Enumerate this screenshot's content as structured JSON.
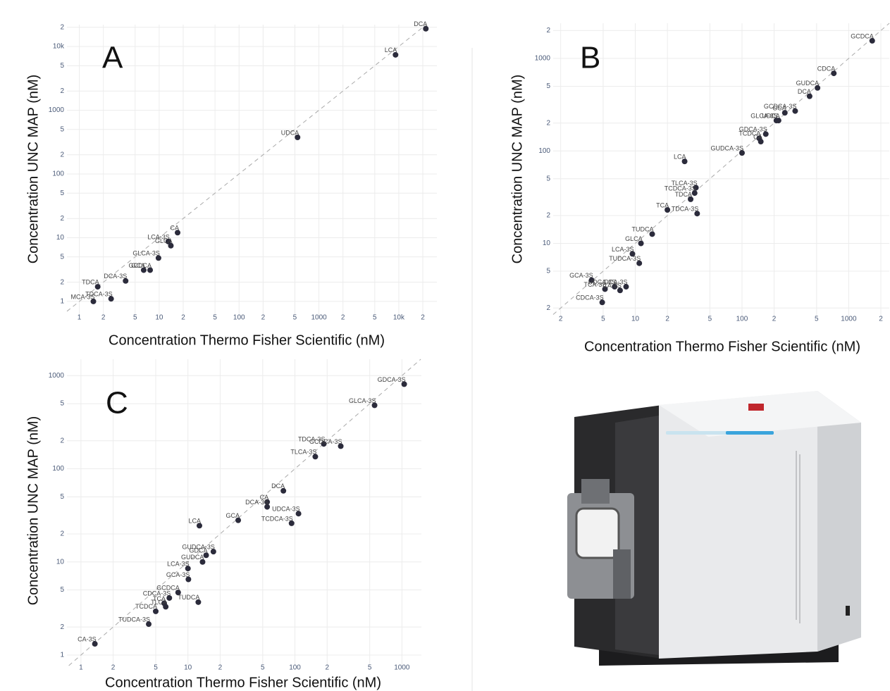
{
  "chart_data": [
    {
      "type": "scatter",
      "panel": "A",
      "xscale": "log",
      "yscale": "log",
      "grid": true,
      "color": "#2b2b3b",
      "x_label": "Concentration Thermo Fisher Scientific (nM)",
      "y_label": "Concentration UNC MAP (nM)",
      "xlim": [
        0.7,
        30000
      ],
      "ylim": [
        0.6,
        22000
      ],
      "xticks": [
        1,
        2,
        5,
        10,
        {
          "value": 20,
          "label": "2"
        },
        {
          "value": 50,
          "label": "5"
        },
        100,
        {
          "value": 200,
          "label": "2"
        },
        {
          "value": 500,
          "label": "5"
        },
        1000,
        {
          "value": 2000,
          "label": "2"
        },
        {
          "value": 5000,
          "label": "5"
        },
        {
          "value": 10000,
          "label": "10k"
        },
        {
          "value": 20000,
          "label": "2"
        }
      ],
      "yticks": [
        1,
        2,
        5,
        10,
        {
          "value": 20,
          "label": "2"
        },
        {
          "value": 50,
          "label": "5"
        },
        100,
        {
          "value": 200,
          "label": "2"
        },
        {
          "value": 500,
          "label": "5"
        },
        1000,
        {
          "value": 2000,
          "label": "2"
        },
        {
          "value": 5000,
          "label": "5"
        },
        {
          "value": 10000,
          "label": "10k"
        },
        {
          "value": 20000,
          "label": "2"
        }
      ],
      "labels": [
        "DCA",
        "LCA",
        "UDCA",
        "CA",
        "LCA-3S",
        "GLCA",
        "GLCA-3S",
        "GCDCA",
        "GCA",
        "DCA-3S",
        "TDCA",
        "TDCA-3S",
        "MCA-3S"
      ],
      "x": [
        21800,
        9100,
        540,
        17,
        13,
        14,
        9.8,
        7.7,
        6.4,
        3.8,
        1.7,
        2.5,
        1.5
      ],
      "values": [
        19000,
        7400,
        375,
        12,
        8.7,
        7.5,
        4.8,
        3.1,
        3.1,
        2.1,
        1.7,
        1.1,
        1.0
      ]
    },
    {
      "type": "scatter",
      "panel": "B",
      "xscale": "log",
      "yscale": "log",
      "grid": true,
      "color": "#2b2b3b",
      "x_label": "Concentration Thermo Fisher Scientific (nM)",
      "y_label": "Concentration UNC MAP (nM)",
      "xlim": [
        1.7,
        2400
      ],
      "ylim": [
        1.6,
        2400
      ],
      "xticks": [
        2,
        5,
        10,
        {
          "value": 20,
          "label": "2"
        },
        {
          "value": 50,
          "label": "5"
        },
        100,
        {
          "value": 200,
          "label": "2"
        },
        {
          "value": 500,
          "label": "5"
        },
        1000,
        {
          "value": 2000,
          "label": "2"
        }
      ],
      "yticks": [
        2,
        5,
        10,
        {
          "value": 20,
          "label": "2"
        },
        {
          "value": 50,
          "label": "5"
        },
        100,
        {
          "value": 200,
          "label": "2"
        },
        {
          "value": 500,
          "label": "5"
        },
        1000,
        {
          "value": 2000,
          "label": "2"
        }
      ],
      "labels": [
        "GCDCA",
        "CDCA",
        "GUDCA",
        "DCA",
        "GCDCA-3S",
        "GCA",
        "GLCA-3S",
        "UDCA",
        "GDCA-3S",
        "TCDCA",
        "CA",
        "GUDCA-3S",
        "LCA",
        "TLCA-3S",
        "TCDCA-3S",
        "TDCA",
        "TCA",
        "TDCA-3S",
        "TUDCA",
        "GLCA",
        "LCA-3S",
        "TUDCA-3S",
        "GCA-3S",
        "TCA-3S",
        "UDCA-3S",
        "CA-3S",
        "DCA-3S",
        "CDCA-3S"
      ],
      "x": [
        1660,
        725,
        510,
        430,
        315,
        252,
        210,
        220,
        167,
        145,
        150,
        100,
        29,
        37,
        36,
        33,
        20,
        38,
        14.4,
        11.3,
        9.4,
        10.9,
        3.9,
        5.2,
        6.4,
        7.2,
        8.2,
        4.9
      ],
      "values": [
        1550,
        690,
        480,
        390,
        270,
        258,
        213,
        213,
        152,
        137,
        126,
        95,
        77,
        40,
        35,
        30,
        23,
        21,
        12.6,
        10,
        7.7,
        6.1,
        4.0,
        3.2,
        3.4,
        3.1,
        3.4,
        2.3
      ]
    },
    {
      "type": "scatter",
      "panel": "C",
      "xscale": "log",
      "yscale": "log",
      "grid": true,
      "color": "#2b2b3b",
      "x_label": "Concentration Thermo Fisher Scientific (nM)",
      "y_label": "Concentration UNC MAP (nM)",
      "xlim": [
        0.74,
        1520
      ],
      "ylim": [
        0.77,
        1500
      ],
      "xticks": [
        1,
        2,
        5,
        10,
        {
          "value": 20,
          "label": "2"
        },
        {
          "value": 50,
          "label": "5"
        },
        100,
        {
          "value": 200,
          "label": "2"
        },
        {
          "value": 500,
          "label": "5"
        },
        1000
      ],
      "yticks": [
        1,
        2,
        5,
        10,
        {
          "value": 20,
          "label": "2"
        },
        {
          "value": 50,
          "label": "5"
        },
        100,
        {
          "value": 200,
          "label": "2"
        },
        {
          "value": 500,
          "label": "5"
        },
        1000
      ],
      "labels": [
        "GDCA-3S",
        "GLCA-3S",
        "TDCA-3S",
        "GCDCA-3S",
        "TLCA-3S",
        "DCA",
        "CA",
        "DCA-3S",
        "UDCA-3S",
        "TCDCA-3S",
        "GCA",
        "LCA",
        "GUDCA-3S",
        "GDCA",
        "GUDCA",
        "LCA-3S",
        "GCA-3S",
        "GCDCA",
        "CDCA-3S",
        "TCA",
        "TLCA",
        "TCDCA",
        "TUDCA",
        "TUDCA-3S",
        "CA-3S"
      ],
      "x": [
        1050,
        555,
        186,
        268,
        155,
        78,
        55,
        55,
        108,
        93,
        29.5,
        12.8,
        17.3,
        14.8,
        13.7,
        10,
        10.1,
        8.1,
        6.7,
        6.0,
        6.2,
        5.0,
        12.5,
        4.3,
        1.35
      ],
      "values": [
        810,
        480,
        185,
        175,
        135,
        58,
        44,
        39,
        33,
        26,
        28,
        24.5,
        12.9,
        11.8,
        10,
        8.5,
        6.5,
        4.7,
        4.1,
        3.6,
        3.3,
        2.95,
        3.7,
        2.15,
        1.32
      ]
    }
  ]
}
